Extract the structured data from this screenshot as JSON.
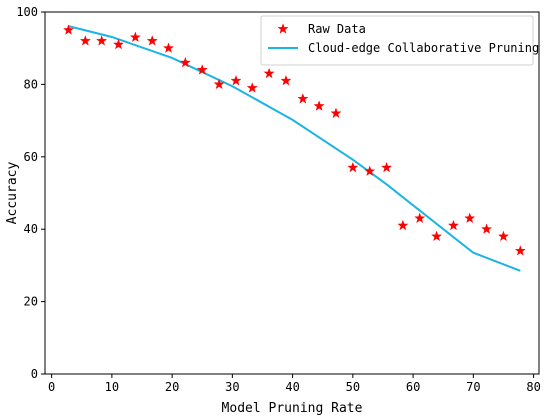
{
  "chart_data": {
    "type": "scatter",
    "xlabel": "Model Pruning Rate",
    "ylabel": "Accuracy",
    "xlim": [
      -1.1,
      80.9
    ],
    "ylim": [
      0,
      100
    ],
    "xticks": [
      0,
      10,
      20,
      30,
      40,
      50,
      60,
      70,
      80
    ],
    "yticks": [
      0,
      20,
      40,
      60,
      80,
      100
    ],
    "grid": false,
    "legend_position": "top-right",
    "series": [
      {
        "name": "Raw Data",
        "kind": "scatter",
        "marker": "star",
        "color": "#ff0000",
        "x": [
          2.8,
          5.6,
          8.3,
          11.1,
          13.9,
          16.7,
          19.4,
          22.2,
          25.0,
          27.8,
          30.6,
          33.3,
          36.1,
          38.9,
          41.7,
          44.4,
          47.2,
          50.0,
          52.8,
          55.6,
          58.3,
          61.1,
          63.9,
          66.7,
          69.4,
          72.2,
          75.0,
          77.8
        ],
        "y": [
          95,
          92,
          92,
          91,
          93,
          92,
          90,
          86,
          84,
          80,
          81,
          79,
          83,
          81,
          76,
          74,
          72,
          57,
          56,
          57,
          41,
          43,
          38,
          41,
          43,
          40,
          38,
          34
        ]
      },
      {
        "name": "Cloud-edge Collaborative Pruning",
        "kind": "line",
        "color": "#1ab4e6",
        "x": [
          2.8,
          10,
          20,
          30,
          40,
          50,
          55.6,
          60,
          70,
          77.8
        ],
        "y": [
          96.1,
          93.1,
          87.3,
          79.5,
          70.2,
          59.2,
          52.4,
          46.6,
          33.5,
          28.5
        ]
      }
    ]
  }
}
